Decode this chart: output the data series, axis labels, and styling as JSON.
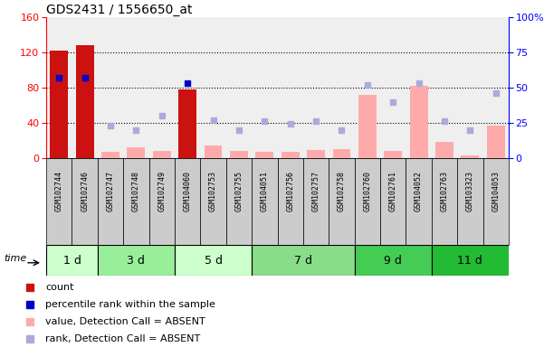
{
  "title": "GDS2431 / 1556650_at",
  "samples": [
    "GSM102744",
    "GSM102746",
    "GSM102747",
    "GSM102748",
    "GSM102749",
    "GSM104060",
    "GSM102753",
    "GSM102755",
    "GSM104051",
    "GSM102756",
    "GSM102757",
    "GSM102758",
    "GSM102760",
    "GSM102761",
    "GSM104052",
    "GSM102763",
    "GSM103323",
    "GSM104053"
  ],
  "time_groups": [
    {
      "label": "1 d",
      "start": 0,
      "end": 2,
      "color": "#ccffcc"
    },
    {
      "label": "3 d",
      "start": 2,
      "end": 5,
      "color": "#99ee99"
    },
    {
      "label": "5 d",
      "start": 5,
      "end": 8,
      "color": "#ccffcc"
    },
    {
      "label": "7 d",
      "start": 8,
      "end": 12,
      "color": "#88dd88"
    },
    {
      "label": "9 d",
      "start": 12,
      "end": 15,
      "color": "#44cc55"
    },
    {
      "label": "11 d",
      "start": 15,
      "end": 18,
      "color": "#22bb33"
    }
  ],
  "count_values": [
    122,
    128,
    0,
    0,
    0,
    78,
    0,
    0,
    0,
    0,
    0,
    0,
    0,
    0,
    0,
    0,
    0,
    0
  ],
  "percentile_rank": [
    57,
    57,
    null,
    null,
    null,
    53,
    null,
    null,
    null,
    null,
    null,
    null,
    null,
    null,
    null,
    null,
    null,
    null
  ],
  "absent_value": [
    null,
    null,
    7,
    12,
    8,
    null,
    14,
    8,
    7,
    7,
    9,
    10,
    72,
    8,
    82,
    18,
    3,
    37
  ],
  "absent_rank": [
    null,
    null,
    23,
    20,
    30,
    null,
    27,
    20,
    26,
    24,
    26,
    20,
    52,
    40,
    53,
    26,
    20,
    46
  ],
  "left_ylim": [
    0,
    160
  ],
  "left_yticks": [
    0,
    40,
    80,
    120,
    160
  ],
  "right_yticks": [
    0,
    25,
    50,
    75,
    100
  ],
  "right_yticklabels": [
    "0",
    "25",
    "50",
    "75",
    "100%"
  ],
  "bar_color_count": "#cc1111",
  "bar_color_absent": "#ffaaaa",
  "dot_color_percentile": "#0000cc",
  "dot_color_rank_absent": "#aaaadd",
  "sample_box_color": "#cccccc",
  "legend_items": [
    {
      "color": "#cc1111",
      "label": "count"
    },
    {
      "color": "#0000cc",
      "label": "percentile rank within the sample"
    },
    {
      "color": "#ffaaaa",
      "label": "value, Detection Call = ABSENT"
    },
    {
      "color": "#aaaadd",
      "label": "rank, Detection Call = ABSENT"
    }
  ]
}
